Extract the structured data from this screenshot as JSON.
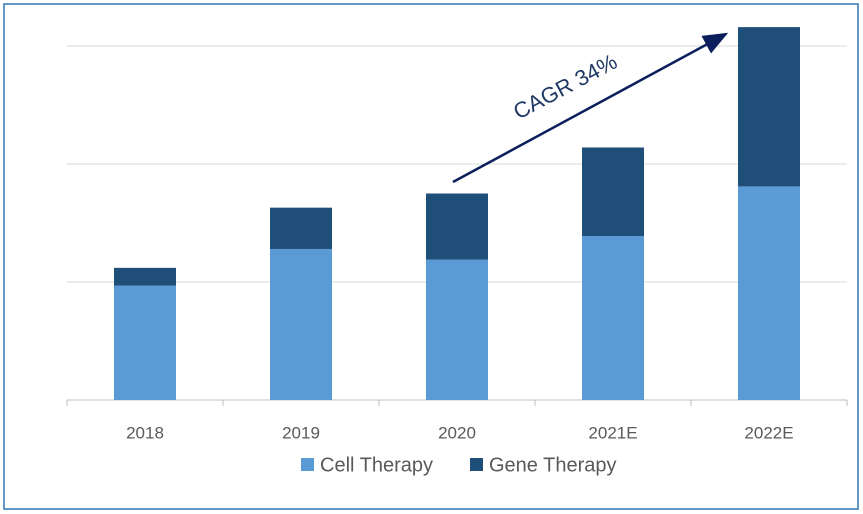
{
  "chart_data": {
    "type": "stacked_bar",
    "categories": [
      "2018",
      "2019",
      "2020",
      "2021E",
      "2022E"
    ],
    "series": [
      {
        "name": "Cell Therapy",
        "color": "#5b9bd5",
        "values": [
          0.97,
          1.28,
          1.19,
          1.39,
          1.81
        ]
      },
      {
        "name": "Gene Therapy",
        "color": "#1f4e79",
        "values": [
          0.15,
          0.35,
          0.56,
          0.75,
          1.35
        ]
      }
    ],
    "ylim": [
      0,
      3.2
    ],
    "yticks": [
      0,
      1,
      2,
      3
    ],
    "grid": true,
    "annotation": "CAGR 34%"
  }
}
